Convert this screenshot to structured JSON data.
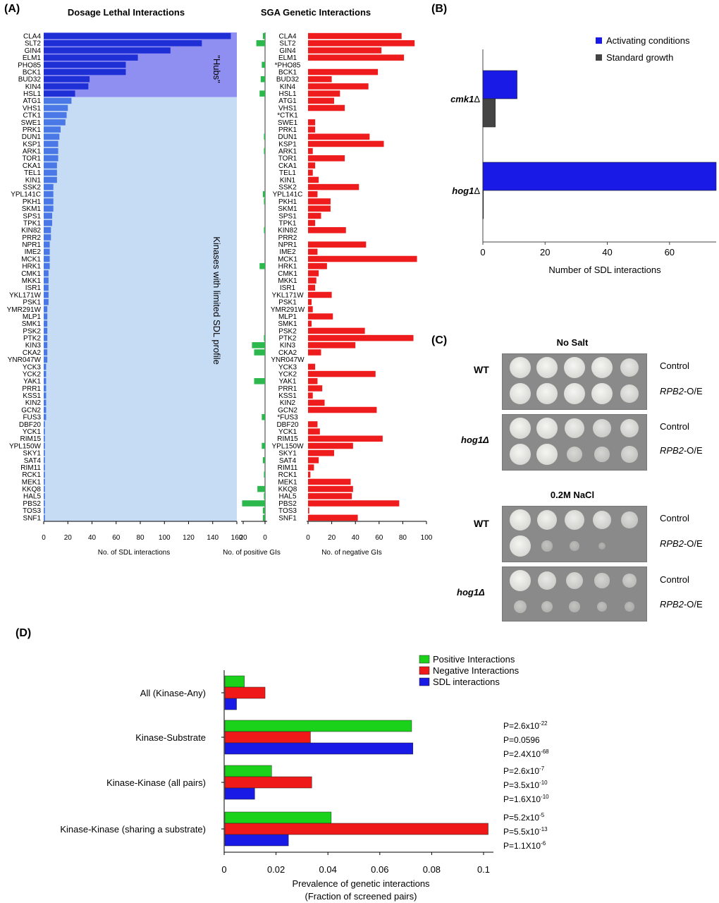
{
  "panel_labels": {
    "a": "(A)",
    "b": "(B)",
    "c": "(C)",
    "d": "(D)"
  },
  "chart_data": [
    {
      "id": "A_sdl",
      "type": "bar",
      "orientation": "horizontal",
      "title": "Dosage Lethal Interactions",
      "xlabel": "No. of SDL interactions",
      "xlim": [
        0,
        160
      ],
      "xticks": [
        0,
        20,
        40,
        60,
        80,
        100,
        120,
        140,
        160
      ],
      "region_labels": [
        "\"Hubs\"",
        "Kinases with limited SDL profile"
      ],
      "categories": [
        "CLA4",
        "SLT2",
        "GIN4",
        "ELM1",
        "PHO85",
        "BCK1",
        "BUD32",
        "KIN4",
        "HSL1",
        "ATG1",
        "VHS1",
        "CTK1",
        "SWE1",
        "PRK1",
        "DUN1",
        "KSP1",
        "ARK1",
        "TOR1",
        "CKA1",
        "TEL1",
        "KIN1",
        "SSK2",
        "YPL141C",
        "PKH1",
        "SKM1",
        "SPS1",
        "TPK1",
        "KIN82",
        "PRR2",
        "NPR1",
        "IME2",
        "MCK1",
        "HRK1",
        "CMK1",
        "MKK1",
        "ISR1",
        "YKL171W",
        "PSK1",
        "YMR291W",
        "MLP1",
        "SMK1",
        "PSK2",
        "PTK2",
        "KIN3",
        "CKA2",
        "YNR047W",
        "YCK3",
        "YCK2",
        "YAK1",
        "PRR1",
        "KSS1",
        "KIN2",
        "GCN2",
        "FUS3",
        "DBF20",
        "YCK1",
        "RIM15",
        "YPL150W",
        "SKY1",
        "SAT4",
        "RIM11",
        "RCK1",
        "MEK1",
        "KKQ8",
        "HAL5",
        "PBS2",
        "TOS3",
        "SNF1"
      ],
      "values": [
        155,
        131,
        105,
        78,
        68,
        68,
        38,
        37,
        26,
        23,
        20,
        19,
        18,
        14,
        13,
        12,
        12,
        12,
        11,
        11,
        11,
        8,
        8,
        8,
        8,
        7,
        7,
        6,
        6,
        5,
        5,
        5,
        5,
        4,
        4,
        4,
        4,
        4,
        3,
        3,
        3,
        3,
        3,
        3,
        3,
        3,
        2,
        2,
        2,
        2,
        2,
        2,
        2,
        2,
        1,
        1,
        1,
        1,
        1,
        1,
        1,
        1,
        1,
        1,
        1,
        1,
        1,
        1
      ],
      "hub_count": 9
    },
    {
      "id": "A_sga",
      "type": "bar",
      "orientation": "horizontal-diverging",
      "title": "SGA Genetic Interactions",
      "xlabel_positive": "No. of positive GIs",
      "xlabel_negative": "No. of negative GIs",
      "pos_xlim": [
        0,
        20
      ],
      "pos_xticks": [
        20,
        0
      ],
      "neg_xlim": [
        0,
        100
      ],
      "neg_xticks": [
        0,
        20,
        40,
        60,
        80,
        100
      ],
      "categories": [
        "CLA4",
        "SLT2",
        "GIN4",
        "ELM1",
        "*PHO85",
        "BCK1",
        "BUD32",
        "KIN4",
        "HSL1",
        "ATG1",
        "VHS1",
        "*CTK1",
        "SWE1",
        "PRK1",
        "DUN1",
        "KSP1",
        "ARK1",
        "TOR1",
        "CKA1",
        "TEL1",
        "KIN1",
        "SSK2",
        "YPL141C",
        "PKH1",
        "SKM1",
        "SPS1",
        "TPK1",
        "KIN82",
        "PRR2",
        "NPR1",
        "IME2",
        "MCK1",
        "HRK1",
        "CMK1",
        "MKK1",
        "ISR1",
        "YKL171W",
        "PSK1",
        "YMR291W",
        "MLP1",
        "SMK1",
        "PSK2",
        "PTK2",
        "KIN3",
        "CKA2",
        "YNR047W",
        "YCK3",
        "YCK2",
        "YAK1",
        "PRR1",
        "KSS1",
        "KIN2",
        "GCN2",
        "*FUS3",
        "DBF20",
        "YCK1",
        "RIM15",
        "YPL150W",
        "SKY1",
        "SAT4",
        "RIM11",
        "RCK1",
        "MEK1",
        "KKQ8",
        "HAL5",
        "PBS2",
        "TOS3",
        "SNF1"
      ],
      "series": [
        {
          "name": "positive",
          "color": "#2db84d",
          "values": [
            2,
            8,
            0,
            0,
            3,
            0,
            4,
            0,
            5,
            0,
            0,
            0,
            0,
            0,
            1,
            0,
            1,
            0,
            0,
            0,
            0,
            0,
            2,
            1,
            0,
            0,
            0,
            1,
            0,
            0,
            0,
            0,
            5,
            0,
            0,
            0,
            0,
            0,
            0,
            0,
            0,
            0,
            1,
            12,
            10,
            0,
            0,
            0,
            10,
            0,
            0,
            0,
            0,
            3,
            0,
            0,
            0,
            3,
            0,
            2,
            0,
            1,
            0,
            7,
            1,
            21,
            2,
            2
          ]
        },
        {
          "name": "negative",
          "color": "#ee1c1c",
          "values": [
            79,
            90,
            62,
            81,
            0,
            59,
            20,
            51,
            27,
            22,
            31,
            0,
            6,
            6,
            52,
            64,
            4,
            31,
            6,
            4,
            9,
            43,
            8,
            19,
            19,
            11,
            6,
            32,
            0,
            49,
            8,
            92,
            16,
            9,
            7,
            6,
            20,
            3,
            4,
            21,
            3,
            48,
            89,
            40,
            11,
            0,
            6,
            57,
            8,
            12,
            4,
            14,
            58,
            0,
            8,
            10,
            63,
            38,
            22,
            9,
            5,
            2,
            36,
            38,
            37,
            77,
            1,
            42
          ]
        }
      ]
    },
    {
      "id": "B",
      "type": "bar",
      "orientation": "horizontal",
      "xlabel": "Number of SDL interactions",
      "xlim": [
        0,
        75
      ],
      "xticks": [
        0,
        20,
        40,
        60
      ],
      "categories": [
        "cmk1Δ",
        "hog1Δ"
      ],
      "series": [
        {
          "name": "Activating conditions",
          "color": "#1a1ae6",
          "values": [
            11,
            75
          ]
        },
        {
          "name": "Standard growth",
          "color": "#444444",
          "values": [
            4,
            0
          ]
        }
      ],
      "legend": "top-right"
    },
    {
      "id": "D",
      "type": "bar",
      "orientation": "horizontal",
      "xlabel": "Prevalence of genetic interactions",
      "xlabel2": "(Fraction of screened pairs)",
      "xlim": [
        0,
        0.1
      ],
      "xticks": [
        "0",
        "0.02",
        "0.04",
        "0.06",
        "0.08",
        "0.1"
      ],
      "categories": [
        "All (Kinase-Any)",
        "Kinase-Substrate",
        "Kinase-Kinase (all pairs)",
        "Kinase-Kinase (sharing a substrate)"
      ],
      "series": [
        {
          "name": "Positive Interactions",
          "color": "#19d219",
          "values": [
            0.0075,
            0.072,
            0.018,
            0.041
          ]
        },
        {
          "name": "Negative Interactions",
          "color": "#f01919",
          "values": [
            0.0155,
            0.033,
            0.0335,
            0.1015
          ]
        },
        {
          "name": "SDL interactions",
          "color": "#1a1ae6",
          "values": [
            0.0045,
            0.0725,
            0.0115,
            0.0245
          ]
        }
      ],
      "legend": "top-right",
      "pvalues": [
        [],
        [
          {
            "base": "P=2.6x10",
            "exp": "-22"
          },
          {
            "base": "P=0.0596",
            "exp": ""
          },
          {
            "base": "P=2.4X10",
            "exp": "-68"
          }
        ],
        [
          {
            "base": "P=2.6x10",
            "exp": "-7"
          },
          {
            "base": "P=3.5x10",
            "exp": "-10"
          },
          {
            "base": "P=1.6X10",
            "exp": "-10"
          }
        ],
        [
          {
            "base": "P=5.2x10",
            "exp": "-5"
          },
          {
            "base": "P=5.5x10",
            "exp": "-13"
          },
          {
            "base": "P=1.1X10",
            "exp": "-6"
          }
        ]
      ]
    }
  ],
  "panel_c": {
    "conditions": [
      {
        "title": "No Salt",
        "strains": [
          {
            "strain": "WT",
            "rows": [
              {
                "label": "Control",
                "growth": [
                  1,
                  1,
                  1,
                  1,
                  0.85
                ]
              },
              {
                "label": "RPB2-O/E",
                "growth": [
                  1,
                  1,
                  1,
                  1,
                  0.85
                ]
              }
            ]
          },
          {
            "strain": "hog1Δ",
            "rows": [
              {
                "label": "Control",
                "growth": [
                  1,
                  1,
                  0.9,
                  0.8,
                  0.85
                ]
              },
              {
                "label": "RPB2-O/E",
                "growth": [
                  1,
                  1,
                  0.65,
                  0.6,
                  0.7
                ]
              }
            ]
          }
        ]
      },
      {
        "title": "0.2M NaCl",
        "strains": [
          {
            "strain": "WT",
            "rows": [
              {
                "label": "Control",
                "growth": [
                  1,
                  0.95,
                  0.9,
                  0.85,
                  0.7
                ]
              },
              {
                "label": "RPB2-O/E",
                "growth": [
                  1,
                  0.35,
                  0.25,
                  0.1,
                  0
                ]
              }
            ]
          },
          {
            "strain": "hog1Δ",
            "rows": [
              {
                "label": "Control",
                "growth": [
                  1,
                  0.85,
                  0.75,
                  0.6,
                  0.55
                ]
              },
              {
                "label": "RPB2-O/E",
                "growth": [
                  0.45,
                  0.4,
                  0.35,
                  0.3,
                  0.25
                ]
              }
            ]
          }
        ]
      }
    ]
  }
}
